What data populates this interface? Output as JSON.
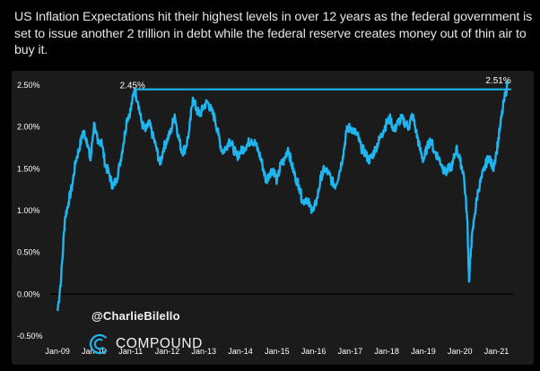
{
  "post": {
    "caption": "US Inflation Expectations hit their highest levels in over 12 years as the federal government is set to issue another 2 trillion in debt while the federal reserve creates money out of thin air to buy it."
  },
  "watermark": {
    "handle": "@CharlieBilello",
    "brand": "COMPOUND",
    "logo_icon": "compound-logo-icon"
  },
  "colors": {
    "background": "#000000",
    "panel": "#1b1b1b",
    "series": "#1fb6f0",
    "reference_line": "#1fb6f0",
    "axis_line": "#000000",
    "text": "#ffffff"
  },
  "chart_data": {
    "type": "line",
    "title": "",
    "xlabel": "",
    "ylabel": "",
    "ylim": [
      -0.5,
      2.5
    ],
    "y_ticks": [
      "2.50%",
      "2.00%",
      "1.50%",
      "1.00%",
      "0.50%",
      "0.00%",
      "-0.50%"
    ],
    "x_ticks": [
      "Jan-09",
      "Jan-10",
      "Jan-11",
      "Jan-12",
      "Jan-13",
      "Jan-14",
      "Jan-15",
      "Jan-16",
      "Jan-17",
      "Jan-18",
      "Jan-19",
      "Jan-20",
      "Jan-21"
    ],
    "x_range_years": [
      2008.8,
      2021.6
    ],
    "reference_line": {
      "value": 2.45,
      "from_year": 2011.1,
      "to_year": 2021.4
    },
    "annotations": [
      {
        "text": "2.45%",
        "year": 2011.05,
        "value": 2.45
      },
      {
        "text": "2.51%",
        "year": 2021.05,
        "value": 2.51
      }
    ],
    "series": [
      {
        "name": "US Inflation Expectations",
        "x": [
          2009.0,
          2009.1,
          2009.2,
          2009.3,
          2009.4,
          2009.5,
          2009.6,
          2009.7,
          2009.8,
          2009.9,
          2010.0,
          2010.1,
          2010.2,
          2010.3,
          2010.4,
          2010.5,
          2010.6,
          2010.7,
          2010.8,
          2010.9,
          2011.0,
          2011.1,
          2011.2,
          2011.3,
          2011.4,
          2011.5,
          2011.6,
          2011.7,
          2011.8,
          2011.9,
          2012.0,
          2012.1,
          2012.2,
          2012.3,
          2012.4,
          2012.5,
          2012.6,
          2012.7,
          2012.8,
          2012.9,
          2013.0,
          2013.1,
          2013.2,
          2013.3,
          2013.4,
          2013.5,
          2013.6,
          2013.7,
          2013.8,
          2013.9,
          2014.0,
          2014.1,
          2014.2,
          2014.3,
          2014.4,
          2014.5,
          2014.6,
          2014.7,
          2014.8,
          2014.9,
          2015.0,
          2015.1,
          2015.2,
          2015.3,
          2015.4,
          2015.5,
          2015.6,
          2015.7,
          2015.8,
          2015.9,
          2016.0,
          2016.1,
          2016.2,
          2016.3,
          2016.4,
          2016.5,
          2016.6,
          2016.7,
          2016.8,
          2016.9,
          2017.0,
          2017.1,
          2017.2,
          2017.3,
          2017.4,
          2017.5,
          2017.6,
          2017.7,
          2017.8,
          2017.9,
          2018.0,
          2018.1,
          2018.2,
          2018.3,
          2018.4,
          2018.5,
          2018.6,
          2018.7,
          2018.8,
          2018.9,
          2019.0,
          2019.1,
          2019.2,
          2019.3,
          2019.4,
          2019.5,
          2019.6,
          2019.7,
          2019.8,
          2019.9,
          2020.0,
          2020.1,
          2020.2,
          2020.25,
          2020.3,
          2020.4,
          2020.5,
          2020.6,
          2020.7,
          2020.8,
          2020.9,
          2021.0,
          2021.1,
          2021.2,
          2021.3
        ],
        "values": [
          -0.2,
          0.2,
          0.9,
          1.1,
          1.3,
          1.6,
          1.75,
          1.95,
          1.85,
          1.6,
          2.05,
          1.8,
          1.85,
          1.55,
          1.45,
          1.3,
          1.35,
          1.55,
          1.8,
          2.1,
          2.2,
          2.45,
          2.3,
          2.05,
          1.95,
          2.05,
          1.9,
          1.75,
          1.55,
          1.75,
          1.85,
          1.95,
          2.15,
          1.9,
          1.7,
          1.75,
          1.95,
          2.35,
          2.2,
          2.15,
          2.25,
          2.3,
          2.2,
          2.1,
          1.9,
          1.7,
          1.75,
          1.85,
          1.75,
          1.65,
          1.7,
          1.75,
          1.8,
          1.85,
          1.8,
          1.7,
          1.55,
          1.35,
          1.45,
          1.5,
          1.35,
          1.55,
          1.6,
          1.75,
          1.55,
          1.4,
          1.3,
          1.1,
          1.15,
          1.05,
          1.0,
          1.15,
          1.4,
          1.5,
          1.45,
          1.35,
          1.3,
          1.45,
          1.65,
          1.95,
          2.0,
          1.95,
          1.9,
          1.75,
          1.7,
          1.6,
          1.65,
          1.75,
          1.85,
          1.95,
          2.05,
          2.1,
          1.95,
          2.05,
          2.1,
          2.05,
          2.0,
          2.15,
          1.95,
          1.75,
          1.6,
          1.75,
          1.85,
          1.7,
          1.65,
          1.55,
          1.45,
          1.5,
          1.55,
          1.75,
          1.6,
          1.45,
          0.9,
          0.15,
          0.55,
          0.95,
          1.25,
          1.4,
          1.55,
          1.65,
          1.5,
          1.7,
          2.0,
          2.3,
          2.51
        ]
      }
    ]
  }
}
